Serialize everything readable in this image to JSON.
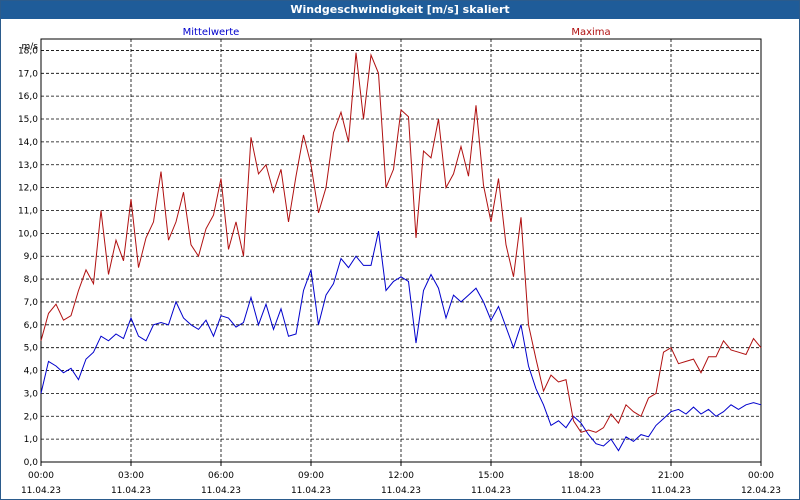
{
  "window": {
    "title": "Windgeschwindigkeit [m/s] skaliert"
  },
  "colors": {
    "mean": "#0000cc",
    "max": "#b01010",
    "titlebar": "#1f5c99"
  },
  "chart_data": {
    "type": "line",
    "title": "Windgeschwindigkeit [m/s] skaliert",
    "ylabel": "m/s",
    "xlabel": "",
    "ylim": [
      0,
      18.5
    ],
    "xlim_hours": [
      0,
      24
    ],
    "grid": true,
    "y_ticks": [
      "0,0",
      "1,0",
      "2,0",
      "3,0",
      "4,0",
      "5,0",
      "6,0",
      "7,0",
      "8,0",
      "9,0",
      "10,0",
      "11,0",
      "12,0",
      "13,0",
      "14,0",
      "15,0",
      "16,0",
      "17,0",
      "18,0"
    ],
    "x_ticks": [
      {
        "time": "00:00",
        "date": "11.04.23"
      },
      {
        "time": "03:00",
        "date": "11.04.23"
      },
      {
        "time": "06:00",
        "date": "11.04.23"
      },
      {
        "time": "09:00",
        "date": "11.04.23"
      },
      {
        "time": "12:00",
        "date": "11.04.23"
      },
      {
        "time": "15:00",
        "date": "11.04.23"
      },
      {
        "time": "18:00",
        "date": "11.04.23"
      },
      {
        "time": "21:00",
        "date": "11.04.23"
      },
      {
        "time": "00:00",
        "date": "12.04.23"
      }
    ],
    "x_hours": [
      0,
      0.25,
      0.5,
      0.75,
      1,
      1.25,
      1.5,
      1.75,
      2,
      2.25,
      2.5,
      2.75,
      3,
      3.25,
      3.5,
      3.75,
      4,
      4.25,
      4.5,
      4.75,
      5,
      5.25,
      5.5,
      5.75,
      6,
      6.25,
      6.5,
      6.75,
      7,
      7.25,
      7.5,
      7.75,
      8,
      8.25,
      8.5,
      8.75,
      9,
      9.25,
      9.5,
      9.75,
      10,
      10.25,
      10.5,
      10.75,
      11,
      11.25,
      11.5,
      11.75,
      12,
      12.25,
      12.5,
      12.75,
      13,
      13.25,
      13.5,
      13.75,
      14,
      14.25,
      14.5,
      14.75,
      15,
      15.25,
      15.5,
      15.75,
      16,
      16.25,
      16.5,
      16.75,
      17,
      17.25,
      17.5,
      17.75,
      18,
      18.25,
      18.5,
      18.75,
      19,
      19.25,
      19.5,
      19.75,
      20,
      20.25,
      20.5,
      20.75,
      21,
      21.25,
      21.5,
      21.75,
      22,
      22.25,
      22.5,
      22.75,
      23,
      23.25,
      23.5,
      23.75,
      24
    ],
    "series": [
      {
        "name": "Mittelwerte",
        "values": [
          3.0,
          4.4,
          4.2,
          3.9,
          4.1,
          3.6,
          4.5,
          4.8,
          5.5,
          5.3,
          5.6,
          5.4,
          6.3,
          5.5,
          5.3,
          6.0,
          6.1,
          6.0,
          7.0,
          6.3,
          6.0,
          5.8,
          6.2,
          5.5,
          6.4,
          6.3,
          5.9,
          6.1,
          7.2,
          6.0,
          6.9,
          5.8,
          6.7,
          5.5,
          5.6,
          7.5,
          8.4,
          6.0,
          7.3,
          7.8,
          8.9,
          8.5,
          9.0,
          8.6,
          8.6,
          10.1,
          7.5,
          7.9,
          8.1,
          7.9,
          5.2,
          7.5,
          8.2,
          7.6,
          6.3,
          7.3,
          7.0,
          7.3,
          7.6,
          7.0,
          6.2,
          6.8,
          5.9,
          5.0,
          6.0,
          4.2,
          3.2,
          2.5,
          1.6,
          1.8,
          1.5,
          2.0,
          1.7,
          1.2,
          0.8,
          0.7,
          1.0,
          0.5,
          1.1,
          0.9,
          1.2,
          1.1,
          1.6,
          1.9,
          2.2,
          2.3,
          2.1,
          2.4,
          2.1,
          2.3,
          2.0,
          2.2,
          2.5,
          2.3,
          2.5,
          2.6,
          2.5
        ]
      },
      {
        "name": "Maxima",
        "values": [
          5.3,
          6.5,
          6.9,
          6.2,
          6.4,
          7.5,
          8.4,
          7.8,
          11.0,
          8.2,
          9.7,
          8.8,
          11.5,
          8.5,
          9.8,
          10.5,
          12.7,
          9.7,
          10.5,
          11.8,
          9.5,
          9.0,
          10.2,
          10.8,
          12.4,
          9.3,
          10.5,
          9.0,
          14.2,
          12.6,
          13.0,
          11.8,
          12.8,
          10.5,
          12.5,
          14.3,
          13.0,
          10.9,
          12.0,
          14.4,
          15.3,
          14.0,
          17.9,
          15.0,
          17.8,
          17.0,
          12.0,
          12.8,
          15.4,
          15.1,
          9.8,
          13.6,
          13.3,
          15.0,
          12.0,
          12.6,
          13.8,
          12.5,
          15.6,
          12.1,
          10.5,
          12.4,
          9.5,
          8.1,
          10.7,
          6.0,
          4.5,
          3.1,
          3.8,
          3.5,
          3.6,
          1.8,
          1.3,
          1.4,
          1.3,
          1.5,
          2.1,
          1.7,
          2.5,
          2.2,
          2.0,
          2.8,
          3.0,
          4.8,
          5.0,
          4.3,
          4.4,
          4.5,
          3.9,
          4.6,
          4.6,
          5.3,
          4.9,
          4.8,
          4.7,
          5.4,
          5.0
        ]
      }
    ]
  }
}
